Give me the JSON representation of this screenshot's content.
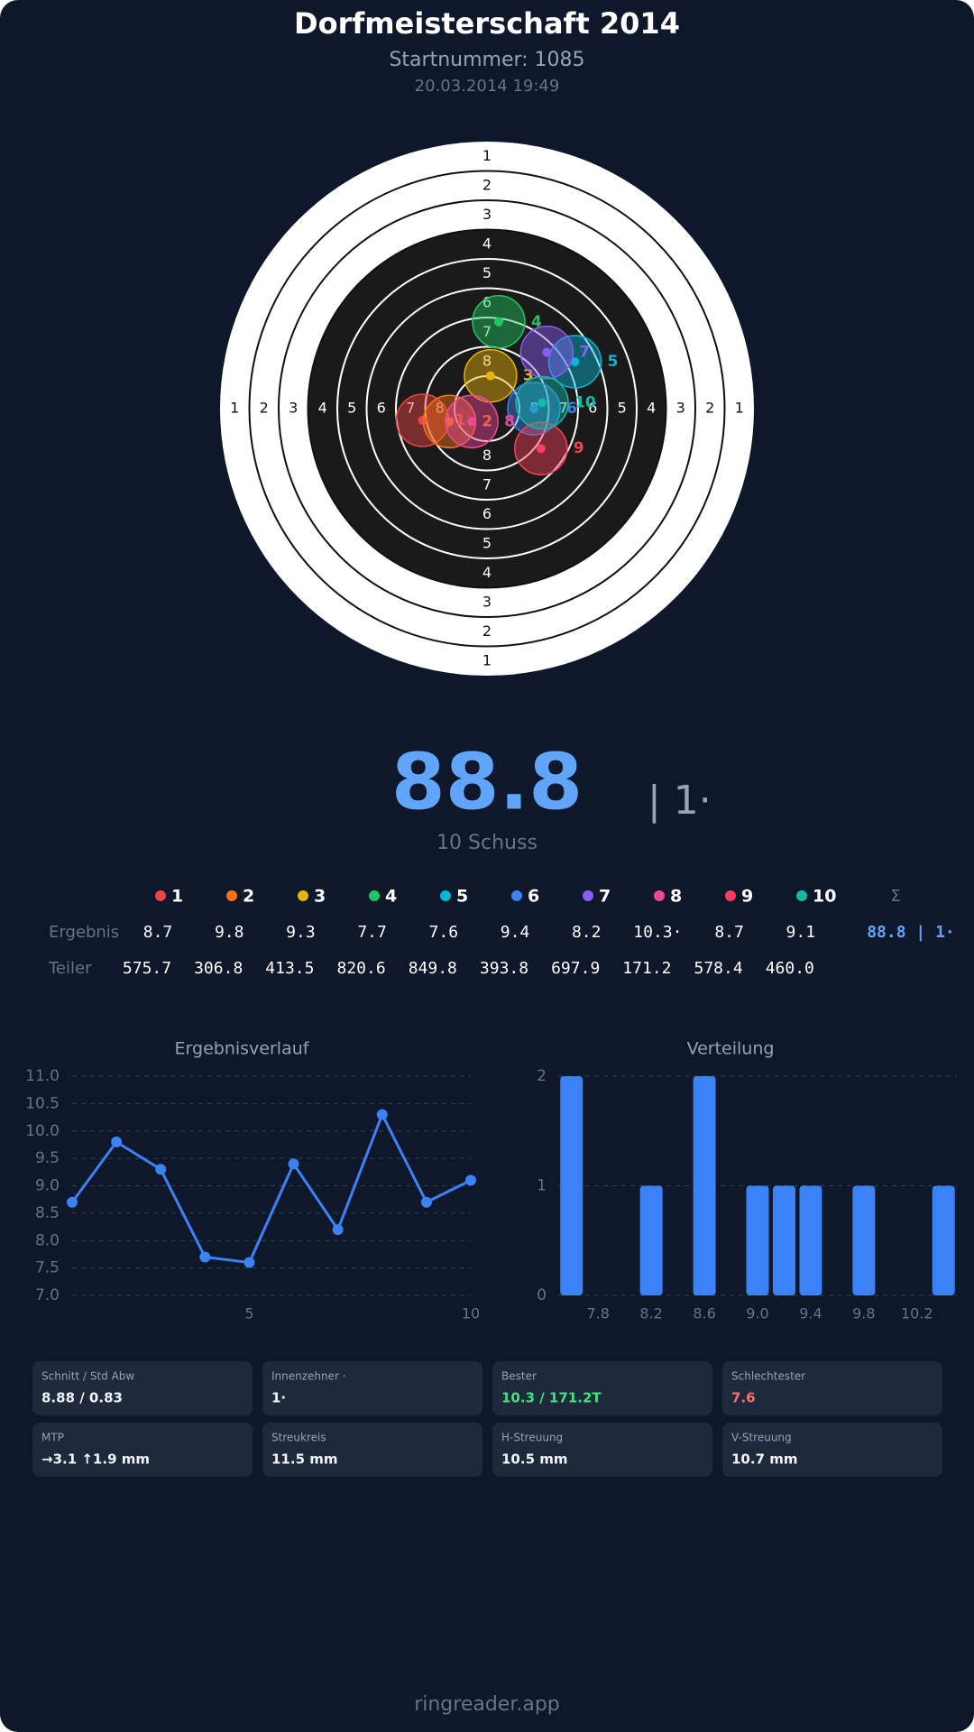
{
  "header": {
    "title": "Dorfmeisterschaft 2014",
    "subtitle": "Startnummer: 1085",
    "date": "20.03.2014 19:49"
  },
  "target": {
    "ring_labels": [
      "1",
      "2",
      "3",
      "4",
      "5",
      "6",
      "7",
      "8"
    ]
  },
  "shots": [
    {
      "label": "1",
      "color": "#ef4444",
      "x": -5.5,
      "y": -1.0,
      "result": "8.7",
      "teiler": "575.7"
    },
    {
      "label": "2",
      "color": "#f97316",
      "x": -3.2,
      "y": -1.1,
      "result": "9.8",
      "teiler": "306.8"
    },
    {
      "label": "3",
      "color": "#eab308",
      "x": 0.3,
      "y": 2.8,
      "result": "9.3",
      "teiler": "413.5"
    },
    {
      "label": "4",
      "color": "#22c55e",
      "x": 1.0,
      "y": 7.4,
      "result": "7.7",
      "teiler": "820.6"
    },
    {
      "label": "5",
      "color": "#06b6d4",
      "x": 7.5,
      "y": 4.0,
      "result": "7.6",
      "teiler": "849.8"
    },
    {
      "label": "6",
      "color": "#3b82f6",
      "x": 4.0,
      "y": 0.0,
      "result": "9.4",
      "teiler": "393.8"
    },
    {
      "label": "7",
      "color": "#8b5cf6",
      "x": 5.1,
      "y": 4.8,
      "result": "8.2",
      "teiler": "697.9"
    },
    {
      "label": "8",
      "color": "#ec4899",
      "x": -1.3,
      "y": -1.1,
      "result": "10.3·",
      "teiler": "171.2"
    },
    {
      "label": "9",
      "color": "#f43f5e",
      "x": 4.6,
      "y": -3.4,
      "result": "8.7",
      "teiler": "578.4"
    },
    {
      "label": "10",
      "color": "#14b8a6",
      "x": 4.7,
      "y": 0.5,
      "result": "9.1",
      "teiler": "460.0"
    }
  ],
  "score": {
    "total": "88.8",
    "inner": "| 1·",
    "shots": "10 Schuss"
  },
  "table": {
    "row_labels": [
      "Ergebnis",
      "Teiler"
    ],
    "sum_header": "Σ",
    "sum": "88.8 | 1·"
  },
  "chart_data": [
    {
      "type": "line",
      "title": "Ergebnisverlauf",
      "color": "#3b82f6",
      "grid": true,
      "x": [
        1,
        2,
        3,
        4,
        5,
        6,
        7,
        8,
        9,
        10
      ],
      "values": [
        8.7,
        9.8,
        9.3,
        7.7,
        7.6,
        9.4,
        8.2,
        10.3,
        8.7,
        9.1
      ],
      "xlim": [
        1,
        10
      ],
      "xticks": [
        5,
        10
      ],
      "ylim": [
        7,
        11
      ],
      "yticks": [
        {
          "value": 7,
          "label": "7.0"
        },
        7.5,
        {
          "value": 8,
          "label": "8.0"
        },
        8.5,
        {
          "value": 9,
          "label": "9.0"
        },
        9.5,
        {
          "value": 10,
          "label": "10.0"
        },
        10.5,
        {
          "value": 11,
          "label": "11.0"
        }
      ]
    },
    {
      "type": "bar",
      "title": "Verteilung",
      "color": "#3b82f6",
      "grid": true,
      "x": [
        7.6,
        8.2,
        8.6,
        9.0,
        9.2,
        9.4,
        9.8,
        10.4
      ],
      "values": [
        2,
        1,
        2,
        1,
        1,
        1,
        1,
        1
      ],
      "xlim": [
        7.5,
        10.5
      ],
      "xticks": [
        7.8,
        8.2,
        8.6,
        {
          "value": 9,
          "label": "9.0"
        },
        9.4,
        9.8,
        10.2
      ],
      "ylim": [
        0,
        2
      ],
      "yticks": [
        0,
        1,
        2
      ]
    }
  ],
  "cards": [
    {
      "label": "Schnitt / Std Abw",
      "value": "8.88 / 0.83"
    },
    {
      "label": "Innenzehner ·",
      "value": "1·"
    },
    {
      "label": "Bester",
      "value": "10.3 / 171.2T",
      "color": "#4ade80"
    },
    {
      "label": "Schlechtester",
      "value": "7.6",
      "color": "#f87171"
    },
    {
      "label": "MTP",
      "value": "→3.1 ↑1.9 mm"
    },
    {
      "label": "Streukreis",
      "value": "11.5 mm"
    },
    {
      "label": "H-Streuung",
      "value": "10.5 mm"
    },
    {
      "label": "V-Streuung",
      "value": "10.7 mm"
    }
  ],
  "footer": "ringreader.app"
}
